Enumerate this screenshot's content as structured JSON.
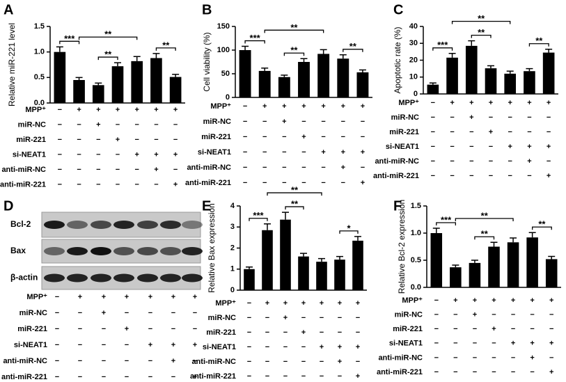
{
  "chart_data": [
    {
      "type": "bar",
      "panel": "A",
      "ylabel": "Relative miR-221 level",
      "color": "#000000",
      "categories": [
        null,
        null,
        null,
        null,
        null,
        null,
        null
      ],
      "values": [
        1.0,
        0.45,
        0.35,
        0.72,
        0.82,
        0.88,
        0.51
      ],
      "errors": [
        0.1,
        0.05,
        0.04,
        0.07,
        0.09,
        0.09,
        0.05
      ],
      "ylim": [
        0,
        1.5
      ],
      "yticks": [
        {
          "value": 0,
          "label": "0.0"
        },
        0.5,
        {
          "value": 1,
          "label": "1.0"
        },
        1.5
      ],
      "comparisons": [
        {
          "text": "***",
          "bars": [
            0,
            1
          ]
        },
        {
          "text": "**",
          "bars": [
            1,
            4
          ]
        },
        {
          "text": "**",
          "bars": [
            2,
            3
          ]
        },
        {
          "text": "**",
          "bars": [
            5,
            6
          ]
        }
      ],
      "rows": [
        {
          "name": "MPP⁺",
          "marks": [
            "−",
            "+",
            "+",
            "+",
            "+",
            "+",
            "+"
          ]
        },
        {
          "name": "miR-NC",
          "marks": [
            "−",
            "−",
            "+",
            "−",
            "−",
            "−",
            "−"
          ]
        },
        {
          "name": "miR-221",
          "marks": [
            "−",
            "−",
            "−",
            "+",
            "−",
            "−",
            "−"
          ]
        },
        {
          "name": "si-NEAT1",
          "marks": [
            "−",
            "−",
            "−",
            "−",
            "+",
            "+",
            "+"
          ]
        },
        {
          "name": "anti-miR-NC",
          "marks": [
            "−",
            "−",
            "−",
            "−",
            "−",
            "+",
            "−"
          ]
        },
        {
          "name": "anti-miR-221",
          "marks": [
            "−",
            "−",
            "−",
            "−",
            "−",
            "−",
            "+"
          ]
        }
      ]
    },
    {
      "type": "bar",
      "panel": "B",
      "ylabel": "Cell viability (%)",
      "color": "#000000",
      "categories": [
        null,
        null,
        null,
        null,
        null,
        null,
        null
      ],
      "values": [
        100,
        56,
        43,
        75,
        92,
        82,
        53
      ],
      "errors": [
        8,
        6,
        4,
        7,
        9,
        8,
        5
      ],
      "ylim": [
        0,
        150
      ],
      "yticks": [
        0,
        50,
        100,
        150
      ],
      "comparisons": [
        {
          "text": "***",
          "bars": [
            0,
            1
          ]
        },
        {
          "text": "**",
          "bars": [
            1,
            4
          ]
        },
        {
          "text": "**",
          "bars": [
            2,
            3
          ]
        },
        {
          "text": "**",
          "bars": [
            5,
            6
          ]
        }
      ],
      "rows": [
        {
          "name": "MPP⁺",
          "marks": [
            "−",
            "+",
            "+",
            "+",
            "+",
            "+",
            "+"
          ]
        },
        {
          "name": "miR-NC",
          "marks": [
            "−",
            "−",
            "+",
            "−",
            "−",
            "−",
            "−"
          ]
        },
        {
          "name": "miR-221",
          "marks": [
            "−",
            "−",
            "−",
            "+",
            "−",
            "−",
            "−"
          ]
        },
        {
          "name": "si-NEAT1",
          "marks": [
            "−",
            "−",
            "−",
            "−",
            "+",
            "+",
            "+"
          ]
        },
        {
          "name": "anti-miR-NC",
          "marks": [
            "−",
            "−",
            "−",
            "−",
            "−",
            "+",
            "−"
          ]
        },
        {
          "name": "anti-miR-221",
          "marks": [
            "−",
            "−",
            "−",
            "−",
            "−",
            "−",
            "+"
          ]
        }
      ]
    },
    {
      "type": "bar",
      "panel": "C",
      "ylabel": "Apoptotic rate (%)",
      "color": "#000000",
      "categories": [
        null,
        null,
        null,
        null,
        null,
        null,
        null
      ],
      "values": [
        5.5,
        21.5,
        28.5,
        15.2,
        12,
        13.5,
        24.5
      ],
      "errors": [
        1,
        2.5,
        3,
        1.5,
        1.5,
        1.5,
        2
      ],
      "ylim": [
        0,
        40
      ],
      "yticks": [
        0,
        10,
        20,
        30,
        40
      ],
      "comparisons": [
        {
          "text": "***",
          "bars": [
            0,
            1
          ]
        },
        {
          "text": "**",
          "bars": [
            1,
            4
          ]
        },
        {
          "text": "**",
          "bars": [
            2,
            3
          ]
        },
        {
          "text": "**",
          "bars": [
            5,
            6
          ]
        }
      ],
      "rows": [
        {
          "name": "MPP⁺",
          "marks": [
            "−",
            "+",
            "+",
            "+",
            "+",
            "+",
            "+"
          ]
        },
        {
          "name": "miR-NC",
          "marks": [
            "−",
            "−",
            "+",
            "−",
            "−",
            "−",
            "−"
          ]
        },
        {
          "name": "miR-221",
          "marks": [
            "−",
            "−",
            "−",
            "+",
            "−",
            "−",
            "−"
          ]
        },
        {
          "name": "si-NEAT1",
          "marks": [
            "−",
            "−",
            "−",
            "−",
            "+",
            "+",
            "+"
          ]
        },
        {
          "name": "anti-miR-NC",
          "marks": [
            "−",
            "−",
            "−",
            "−",
            "−",
            "+",
            "−"
          ]
        },
        {
          "name": "anti-miR-221",
          "marks": [
            "−",
            "−",
            "−",
            "−",
            "−",
            "−",
            "+"
          ]
        }
      ]
    },
    {
      "type": "bar",
      "panel": "E",
      "ylabel": "Relative Bax expression",
      "color": "#000000",
      "categories": [
        null,
        null,
        null,
        null,
        null,
        null,
        null
      ],
      "values": [
        1.0,
        2.85,
        3.35,
        1.6,
        1.35,
        1.45,
        2.35
      ],
      "errors": [
        0.1,
        0.3,
        0.35,
        0.15,
        0.15,
        0.15,
        0.2
      ],
      "ylim": [
        0,
        4
      ],
      "yticks": [
        0,
        1,
        2,
        3,
        4
      ],
      "comparisons": [
        {
          "text": "***",
          "bars": [
            0,
            1
          ]
        },
        {
          "text": "**",
          "bars": [
            1,
            4
          ]
        },
        {
          "text": "**",
          "bars": [
            2,
            3
          ]
        },
        {
          "text": "*",
          "bars": [
            5,
            6
          ]
        }
      ],
      "rows": [
        {
          "name": "MPP⁺",
          "marks": [
            "−",
            "+",
            "+",
            "+",
            "+",
            "+",
            "+"
          ]
        },
        {
          "name": "miR-NC",
          "marks": [
            "−",
            "−",
            "+",
            "−",
            "−",
            "−",
            "−"
          ]
        },
        {
          "name": "miR-221",
          "marks": [
            "−",
            "−",
            "−",
            "+",
            "−",
            "−",
            "−"
          ]
        },
        {
          "name": "si-NEAT1",
          "marks": [
            "−",
            "−",
            "−",
            "−",
            "+",
            "+",
            "+"
          ]
        },
        {
          "name": "anti-miR-NC",
          "marks": [
            "−",
            "−",
            "−",
            "−",
            "−",
            "+",
            "−"
          ]
        },
        {
          "name": "anti-miR-221",
          "marks": [
            "−",
            "−",
            "−",
            "−",
            "−",
            "−",
            "+"
          ]
        }
      ]
    },
    {
      "type": "bar",
      "panel": "F",
      "ylabel": "Relative Bcl-2 expression",
      "color": "#000000",
      "categories": [
        null,
        null,
        null,
        null,
        null,
        null,
        null
      ],
      "values": [
        1.0,
        0.37,
        0.45,
        0.75,
        0.83,
        0.92,
        0.52
      ],
      "errors": [
        0.09,
        0.04,
        0.05,
        0.08,
        0.08,
        0.09,
        0.05
      ],
      "ylim": [
        0,
        1.5
      ],
      "yticks": [
        {
          "value": 0,
          "label": "0.0"
        },
        0.5,
        {
          "value": 1,
          "label": "1.0"
        },
        1.5
      ],
      "comparisons": [
        {
          "text": "***",
          "bars": [
            0,
            1
          ]
        },
        {
          "text": "**",
          "bars": [
            1,
            4
          ]
        },
        {
          "text": "**",
          "bars": [
            2,
            3
          ]
        },
        {
          "text": "**",
          "bars": [
            5,
            6
          ]
        }
      ],
      "rows": [
        {
          "name": "MPP⁺",
          "marks": [
            "−",
            "+",
            "+",
            "+",
            "+",
            "+",
            "+"
          ]
        },
        {
          "name": "miR-NC",
          "marks": [
            "−",
            "−",
            "+",
            "−",
            "−",
            "−",
            "−"
          ]
        },
        {
          "name": "miR-221",
          "marks": [
            "−",
            "−",
            "−",
            "+",
            "−",
            "−",
            "−"
          ]
        },
        {
          "name": "si-NEAT1",
          "marks": [
            "−",
            "−",
            "−",
            "−",
            "+",
            "+",
            "+"
          ]
        },
        {
          "name": "anti-miR-NC",
          "marks": [
            "−",
            "−",
            "−",
            "−",
            "−",
            "+",
            "−"
          ]
        },
        {
          "name": "anti-miR-221",
          "marks": [
            "−",
            "−",
            "−",
            "−",
            "−",
            "−",
            "+"
          ]
        }
      ]
    }
  ],
  "blot": {
    "panel": "D",
    "bands": [
      "Bcl-2",
      "Bax",
      "β-actin"
    ],
    "rows": [
      {
        "name": "MPP⁺",
        "marks": [
          "−",
          "+",
          "+",
          "+",
          "+",
          "+",
          "+"
        ]
      },
      {
        "name": "miR-NC",
        "marks": [
          "−",
          "−",
          "+",
          "−",
          "−",
          "−",
          "−"
        ]
      },
      {
        "name": "miR-221",
        "marks": [
          "−",
          "−",
          "−",
          "+",
          "−",
          "−",
          "−"
        ]
      },
      {
        "name": "si-NEAT1",
        "marks": [
          "−",
          "−",
          "−",
          "−",
          "+",
          "+",
          "+"
        ]
      },
      {
        "name": "anti-miR-NC",
        "marks": [
          "−",
          "−",
          "−",
          "−",
          "−",
          "+",
          "−"
        ]
      },
      {
        "name": "anti-miR-221",
        "marks": [
          "−",
          "−",
          "−",
          "−",
          "−",
          "−",
          "+"
        ]
      }
    ]
  }
}
